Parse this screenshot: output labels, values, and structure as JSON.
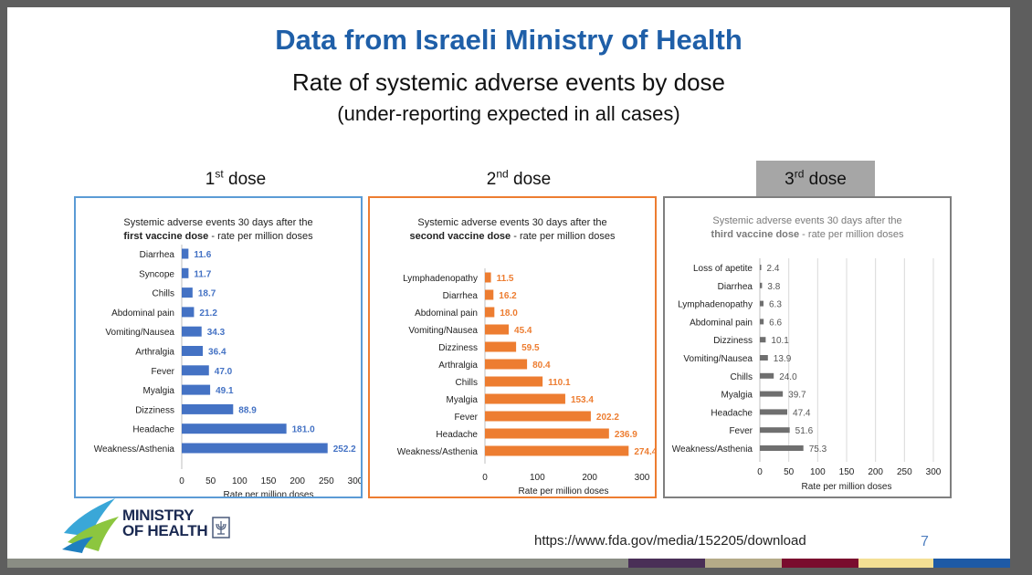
{
  "slide": {
    "title": "Data from Israeli Ministry of Health",
    "subtitle": "Rate of systemic adverse events by dose",
    "subtitle2": "(under-reporting expected in all cases)",
    "url": "https://www.fda.gov/media/152205/download",
    "page_number": "7",
    "logo_line1": "MINISTRY",
    "logo_line2": "OF HEALTH"
  },
  "doses": [
    {
      "num": "1",
      "sup": "st",
      "word": "dose"
    },
    {
      "num": "2",
      "sup": "nd",
      "word": "dose"
    },
    {
      "num": "3",
      "sup": "rd",
      "word": "dose"
    }
  ],
  "colors": {
    "title": "#1f5fa8",
    "dose1": "#4472c4",
    "dose2": "#ed7d31",
    "dose3": "#6f6f6f",
    "panel1_border": "#5b9bd5",
    "panel2_border": "#ed7d31",
    "panel3_border": "#7f7f7f"
  },
  "chart_data": [
    {
      "type": "bar",
      "orientation": "horizontal",
      "title_line1": "Systemic adverse events 30 days after the",
      "title_bold": "first vaccine dose",
      "title_rest": " - rate per million doses",
      "xlabel": "Rate per million doses",
      "xlim": [
        0,
        300
      ],
      "xticks": [
        "0",
        "50",
        "100",
        "150",
        "200",
        "250",
        "300"
      ],
      "grid": false,
      "categories": [
        "Diarrhea",
        "Syncope",
        "Chills",
        "Abdominal pain",
        "Vomiting/Nausea",
        "Arthralgia",
        "Fever",
        "Myalgia",
        "Dizziness",
        "Headache",
        "Weakness/Asthenia"
      ],
      "values": [
        11.6,
        11.7,
        18.7,
        21.2,
        34.3,
        36.4,
        47.0,
        49.1,
        88.9,
        181.0,
        252.2
      ],
      "labels": [
        "11.6",
        "11.7",
        "18.7",
        "21.2",
        "34.3",
        "36.4",
        "47.0",
        "49.1",
        "88.9",
        "181.0",
        "252.2"
      ]
    },
    {
      "type": "bar",
      "orientation": "horizontal",
      "title_line1": "Systemic adverse events 30 days after the",
      "title_bold": "second vaccine dose",
      "title_rest": " - rate per million doses",
      "xlabel": "Rate per million doses",
      "xlim": [
        0,
        300
      ],
      "xticks": [
        "0",
        "100",
        "200",
        "300"
      ],
      "grid": false,
      "categories": [
        "Lymphadenopathy",
        "Diarrhea",
        "Abdominal pain",
        "Vomiting/Nausea",
        "Dizziness",
        "Arthralgia",
        "Chills",
        "Myalgia",
        "Fever",
        "Headache",
        "Weakness/Asthenia"
      ],
      "values": [
        11.5,
        16.2,
        18.0,
        45.4,
        59.5,
        80.4,
        110.1,
        153.4,
        202.2,
        236.9,
        274.4
      ],
      "labels": [
        "11.5",
        "16.2",
        "18.0",
        "45.4",
        "59.5",
        "80.4",
        "110.1",
        "153.4",
        "202.2",
        "236.9",
        "274.4"
      ]
    },
    {
      "type": "bar",
      "orientation": "horizontal",
      "title_line1": "Systemic adverse events 30 days after the",
      "title_bold": "third vaccine dose",
      "title_rest": " - rate per million doses",
      "xlabel": "Rate per million doses",
      "xlim": [
        0,
        300
      ],
      "xticks": [
        "0",
        "50",
        "100",
        "150",
        "200",
        "250",
        "300"
      ],
      "grid": true,
      "categories": [
        "Loss of apetite",
        "Diarrhea",
        "Lymphadenopathy",
        "Abdominal pain",
        "Dizziness",
        "Vomiting/Nausea",
        "Chills",
        "Myalgia",
        "Headache",
        "Fever",
        "Weakness/Asthenia"
      ],
      "values": [
        2.4,
        3.8,
        6.3,
        6.6,
        10.1,
        13.9,
        24.0,
        39.7,
        47.4,
        51.6,
        75.3
      ],
      "labels": [
        "2.4",
        "3.8",
        "6.3",
        "6.6",
        "10.1",
        "13.9",
        "24.0",
        "39.7",
        "47.4",
        "51.6",
        "75.3"
      ]
    }
  ]
}
